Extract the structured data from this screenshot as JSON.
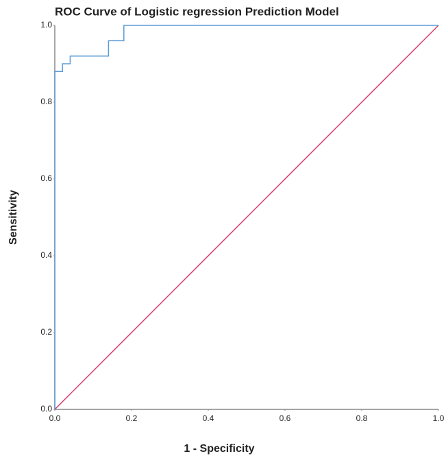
{
  "chart_data": {
    "type": "line",
    "title": "ROC Curve of Logistic regression Prediction Model",
    "x_label": "1 - Specificity",
    "y_label": "Sensitivity",
    "series": [
      {
        "color": "#5b9bd5",
        "x": [
          0,
          0,
          0,
          0.02,
          0.02,
          0.04,
          0.04,
          0.14,
          0.14,
          0.18,
          0.18,
          1.0
        ],
        "values": [
          0,
          0.88,
          0.88,
          0.88,
          0.9,
          0.9,
          0.92,
          0.92,
          0.96,
          0.96,
          1.0,
          1.0
        ]
      },
      {
        "color": "#d63a6a",
        "x": [
          0,
          1.0
        ],
        "values": [
          0,
          1.0
        ]
      }
    ],
    "xlim": [
      0,
      1
    ],
    "ylim": [
      0,
      1
    ],
    "xticks": [
      {
        "value": 0,
        "label": "0.0"
      },
      0.2,
      0.4,
      0.6,
      0.8,
      {
        "value": 1,
        "label": "1.0"
      }
    ],
    "yticks": [
      {
        "value": 0,
        "label": "0.0"
      },
      0.2,
      0.4,
      0.6,
      0.8,
      {
        "value": 1,
        "label": "1.0"
      }
    ],
    "grid": false
  }
}
